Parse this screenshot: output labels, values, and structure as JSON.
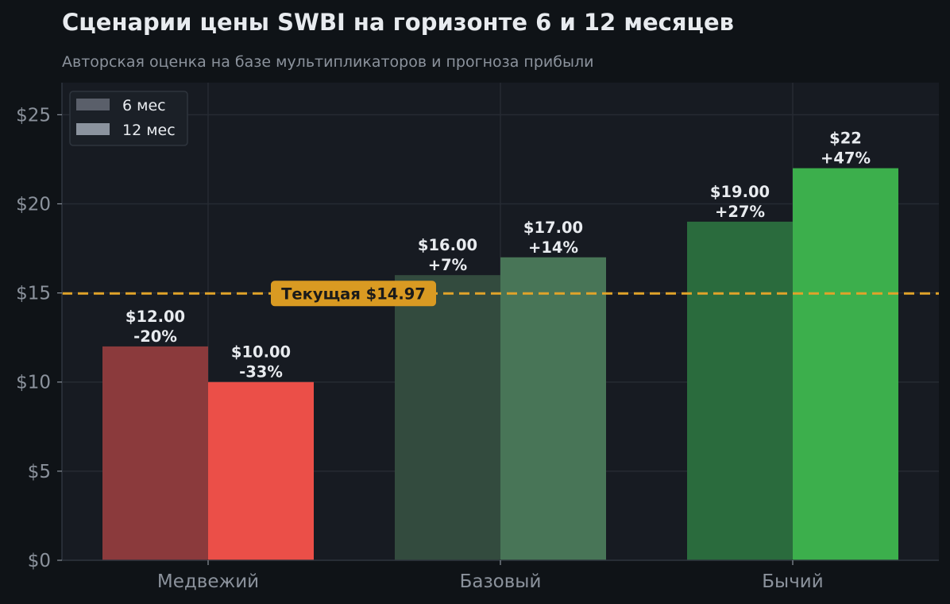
{
  "colors": {
    "page_bg": "#0f1317",
    "plot_bg": "#171b22",
    "grid": "#262b33",
    "current_line": "#e0a32a",
    "current_box": "#d99a22",
    "text": "#e8ebef",
    "muted": "#8b929c",
    "legend_6m": "#5a5f6a",
    "legend_12m": "#8b939e"
  },
  "chart_data": {
    "type": "bar",
    "title": "Сценарии цены SWBI на горизонте 6 и 12 месяцев",
    "subtitle": "Авторская оценка на базе мультипликаторов и прогноза прибыли",
    "categories": [
      "Медвежий",
      "Базовый",
      "Бычий"
    ],
    "series": [
      {
        "name": "6 мес",
        "values": [
          12.0,
          16.0,
          19.0
        ],
        "labels": [
          "$12.00",
          "$16.00",
          "$19.00"
        ],
        "changes": [
          "-20%",
          "+7%",
          "+27%"
        ],
        "colors": [
          "#8b3a3c",
          "#334b3e",
          "#2a6b3d"
        ]
      },
      {
        "name": "12 мес",
        "values": [
          10.0,
          17.0,
          22.0
        ],
        "labels": [
          "$10.00",
          "$17.00",
          "$22"
        ],
        "changes": [
          "-33%",
          "+14%",
          "+47%"
        ],
        "colors": [
          "#eb4f48",
          "#487557",
          "#3caf4c"
        ]
      }
    ],
    "reference_line": {
      "value": 14.97,
      "label": "Текущая $14.97"
    },
    "ylim": [
      0,
      26.8
    ],
    "yticks": [
      0,
      5,
      10,
      15,
      20,
      25
    ],
    "ytick_labels": [
      "$0",
      "$5",
      "$10",
      "$15",
      "$20",
      "$25"
    ],
    "grid": true,
    "legend_position": "top-left"
  }
}
